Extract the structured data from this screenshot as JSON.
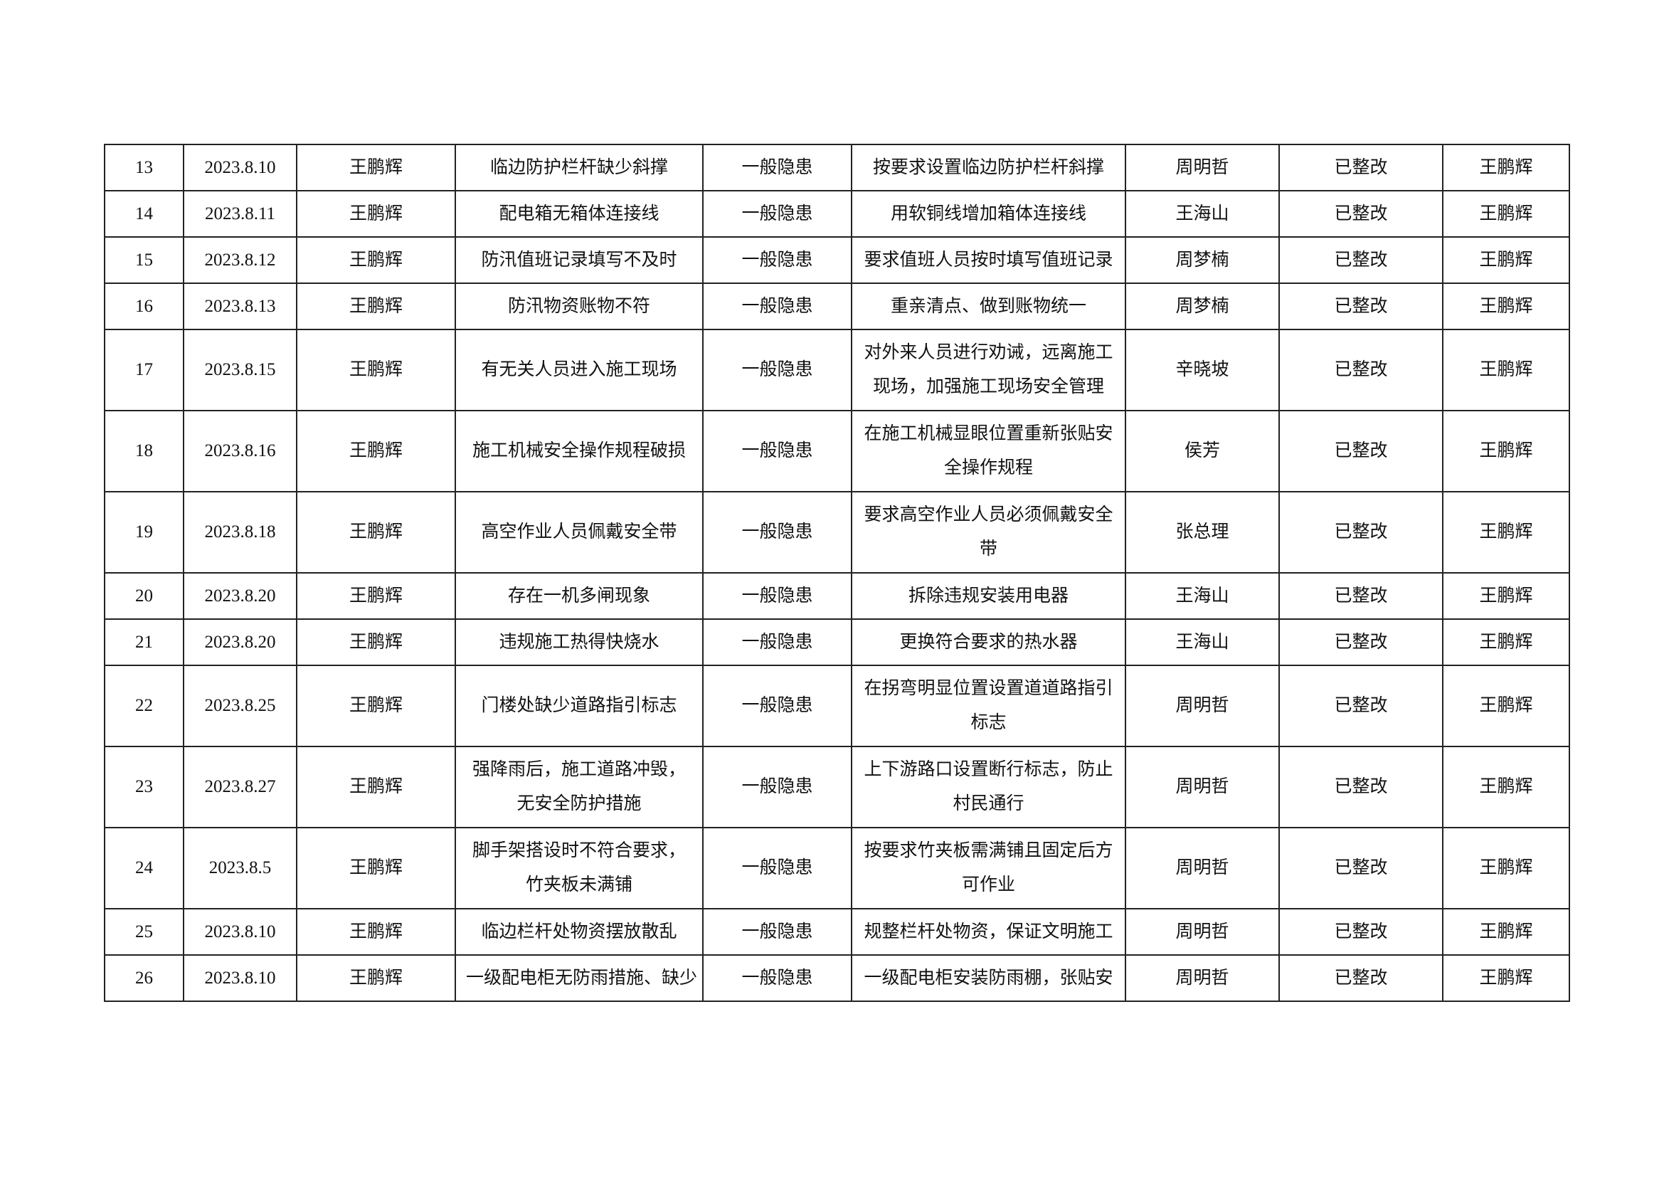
{
  "table": {
    "rows": [
      {
        "no": "13",
        "date": "2023.8.10",
        "inspector": "王鹏辉",
        "issue": "临边防护栏杆缺少斜撑",
        "level": "一般隐患",
        "measure": "按要求设置临边防护栏杆斜撑",
        "responsible": "周明哲",
        "status": "已整改",
        "reviewer": "王鹏辉"
      },
      {
        "no": "14",
        "date": "2023.8.11",
        "inspector": "王鹏辉",
        "issue": "配电箱无箱体连接线",
        "level": "一般隐患",
        "measure": "用软铜线增加箱体连接线",
        "responsible": "王海山",
        "status": "已整改",
        "reviewer": "王鹏辉"
      },
      {
        "no": "15",
        "date": "2023.8.12",
        "inspector": "王鹏辉",
        "issue": "防汛值班记录填写不及时",
        "level": "一般隐患",
        "measure": "要求值班人员按时填写值班记录",
        "responsible": "周梦楠",
        "status": "已整改",
        "reviewer": "王鹏辉"
      },
      {
        "no": "16",
        "date": "2023.8.13",
        "inspector": "王鹏辉",
        "issue": "防汛物资账物不符",
        "level": "一般隐患",
        "measure": "重亲清点、做到账物统一",
        "responsible": "周梦楠",
        "status": "已整改",
        "reviewer": "王鹏辉"
      },
      {
        "no": "17",
        "date": "2023.8.15",
        "inspector": "王鹏辉",
        "issue": "有无关人员进入施工现场",
        "level": "一般隐患",
        "measure": "对外来人员进行劝诫，远离施工现场，加强施工现场安全管理",
        "responsible": "辛晓坡",
        "status": "已整改",
        "reviewer": "王鹏辉"
      },
      {
        "no": "18",
        "date": "2023.8.16",
        "inspector": "王鹏辉",
        "issue": "施工机械安全操作规程破损",
        "level": "一般隐患",
        "measure": "在施工机械显眼位置重新张贴安全操作规程",
        "responsible": "侯芳",
        "status": "已整改",
        "reviewer": "王鹏辉"
      },
      {
        "no": "19",
        "date": "2023.8.18",
        "inspector": "王鹏辉",
        "issue": "高空作业人员佩戴安全带",
        "level": "一般隐患",
        "measure": "要求高空作业人员必须佩戴安全带",
        "responsible": "张总理",
        "status": "已整改",
        "reviewer": "王鹏辉"
      },
      {
        "no": "20",
        "date": "2023.8.20",
        "inspector": "王鹏辉",
        "issue": "存在一机多闸现象",
        "level": "一般隐患",
        "measure": "拆除违规安装用电器",
        "responsible": "王海山",
        "status": "已整改",
        "reviewer": "王鹏辉"
      },
      {
        "no": "21",
        "date": "2023.8.20",
        "inspector": "王鹏辉",
        "issue": "违规施工热得快烧水",
        "level": "一般隐患",
        "measure": "更换符合要求的热水器",
        "responsible": "王海山",
        "status": "已整改",
        "reviewer": "王鹏辉"
      },
      {
        "no": "22",
        "date": "2023.8.25",
        "inspector": "王鹏辉",
        "issue": "门楼处缺少道路指引标志",
        "level": "一般隐患",
        "measure": "在拐弯明显位置设置道道路指引标志",
        "responsible": "周明哲",
        "status": "已整改",
        "reviewer": "王鹏辉"
      },
      {
        "no": "23",
        "date": "2023.8.27",
        "inspector": "王鹏辉",
        "issue": "强降雨后，施工道路冲毁，无安全防护措施",
        "level": "一般隐患",
        "measure": "上下游路口设置断行标志，防止村民通行",
        "responsible": "周明哲",
        "status": "已整改",
        "reviewer": "王鹏辉"
      },
      {
        "no": "24",
        "date": "2023.8.5",
        "inspector": "王鹏辉",
        "issue": "脚手架搭设时不符合要求，竹夹板未满铺",
        "level": "一般隐患",
        "measure": "按要求竹夹板需满铺且固定后方可作业",
        "responsible": "周明哲",
        "status": "已整改",
        "reviewer": "王鹏辉"
      },
      {
        "no": "25",
        "date": "2023.8.10",
        "inspector": "王鹏辉",
        "issue": "临边栏杆处物资摆放散乱",
        "level": "一般隐患",
        "measure": "规整栏杆处物资，保证文明施工",
        "responsible": "周明哲",
        "status": "已整改",
        "reviewer": "王鹏辉"
      },
      {
        "no": "26",
        "date": "2023.8.10",
        "inspector": "王鹏辉",
        "issue": "一级配电柜无防雨措施、缺少",
        "level": "一般隐患",
        "measure": "一级配电柜安装防雨棚，张贴安",
        "responsible": "周明哲",
        "status": "已整改",
        "reviewer": "王鹏辉"
      }
    ]
  }
}
